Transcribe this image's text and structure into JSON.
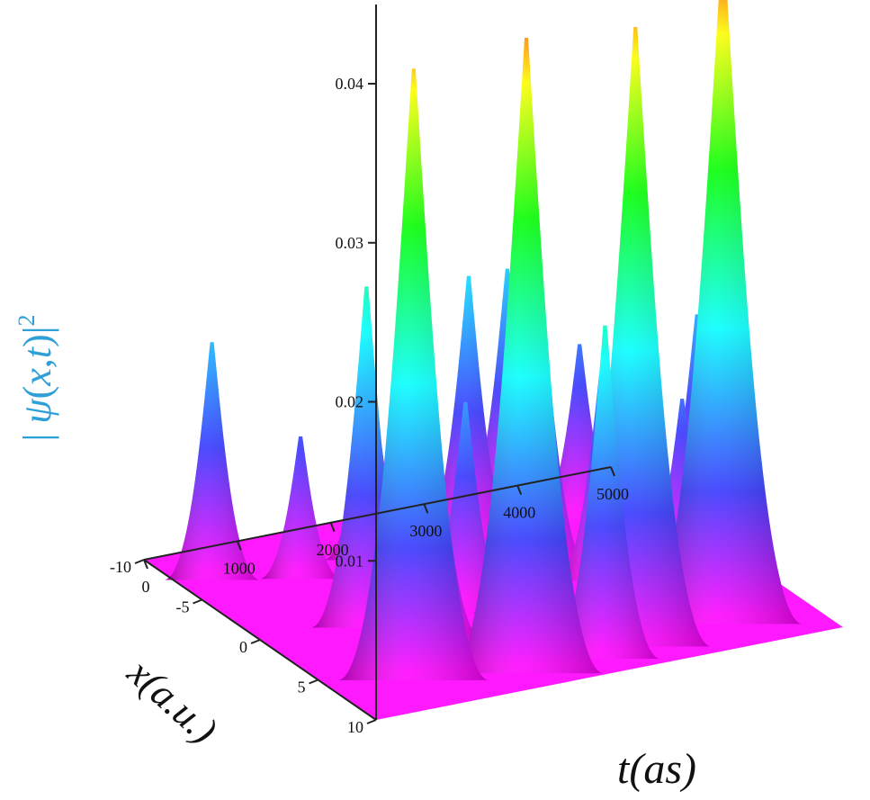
{
  "chart_data": {
    "type": "surface",
    "title": "",
    "zlabel": {
      "prefix": "| ",
      "psi": "ψ",
      "open": "(",
      "x": "x",
      "comma": ",",
      "t": "t",
      "close": ")",
      "bar": "|",
      "exp": "2"
    },
    "xlabel": "t(as)",
    "ylabel": "x(a.u.)",
    "t_range": [
      0,
      5000
    ],
    "x_range": [
      -10,
      10
    ],
    "z_range": [
      0,
      0.043
    ],
    "t_ticks": [
      "0",
      "1000",
      "2000",
      "3000",
      "4000",
      "5000"
    ],
    "x_ticks": [
      "10",
      "5",
      "0",
      "-5",
      "-10"
    ],
    "z_ticks": [
      "0.01",
      "0.02",
      "0.03",
      "0.04"
    ],
    "colors": {
      "low": "#ff00ff",
      "mid_low": "#3333ff",
      "mid": "#00ffff",
      "mid_high": "#00ff00",
      "high_mid": "#ffff00",
      "high": "#ff0000",
      "axis_label": "#2f9fd8"
    },
    "peaks": [
      {
        "t": 430,
        "x": -7.6,
        "z": 0.0145
      },
      {
        "t": 900,
        "x": 6,
        "z": 0.038
      },
      {
        "t": 1140,
        "x": 0,
        "z": 0.021
      },
      {
        "t": 1180,
        "x": -6,
        "z": 0.0085
      },
      {
        "t": 1550,
        "x": 2.4,
        "z": 0.016
      },
      {
        "t": 1920,
        "x": 7.5,
        "z": 0.0395
      },
      {
        "t": 1980,
        "x": -6.5,
        "z": 0.0125
      },
      {
        "t": 2200,
        "x": 0,
        "z": 0.0125
      },
      {
        "t": 2570,
        "x": 1.5,
        "z": 0.0125
      },
      {
        "t": 2750,
        "x": 7.6,
        "z": 0.0205
      },
      {
        "t": 2980,
        "x": -6,
        "z": 0.0165
      },
      {
        "t": 3150,
        "x": 7,
        "z": 0.0385
      },
      {
        "t": 3280,
        "x": -2,
        "z": 0.015
      },
      {
        "t": 3480,
        "x": 4,
        "z": 0.0135
      },
      {
        "t": 3580,
        "x": -7.5,
        "z": 0.0155
      },
      {
        "t": 3650,
        "x": 0,
        "z": 0.0125
      },
      {
        "t": 3920,
        "x": 1.5,
        "z": 0.011
      },
      {
        "t": 4150,
        "x": 6.5,
        "z": 0.0415
      },
      {
        "t": 4230,
        "x": -6.5,
        "z": 0.0105
      },
      {
        "t": 4520,
        "x": 0,
        "z": 0.01
      },
      {
        "t": 4990,
        "x": -2.5,
        "z": 0.0135
      }
    ]
  }
}
